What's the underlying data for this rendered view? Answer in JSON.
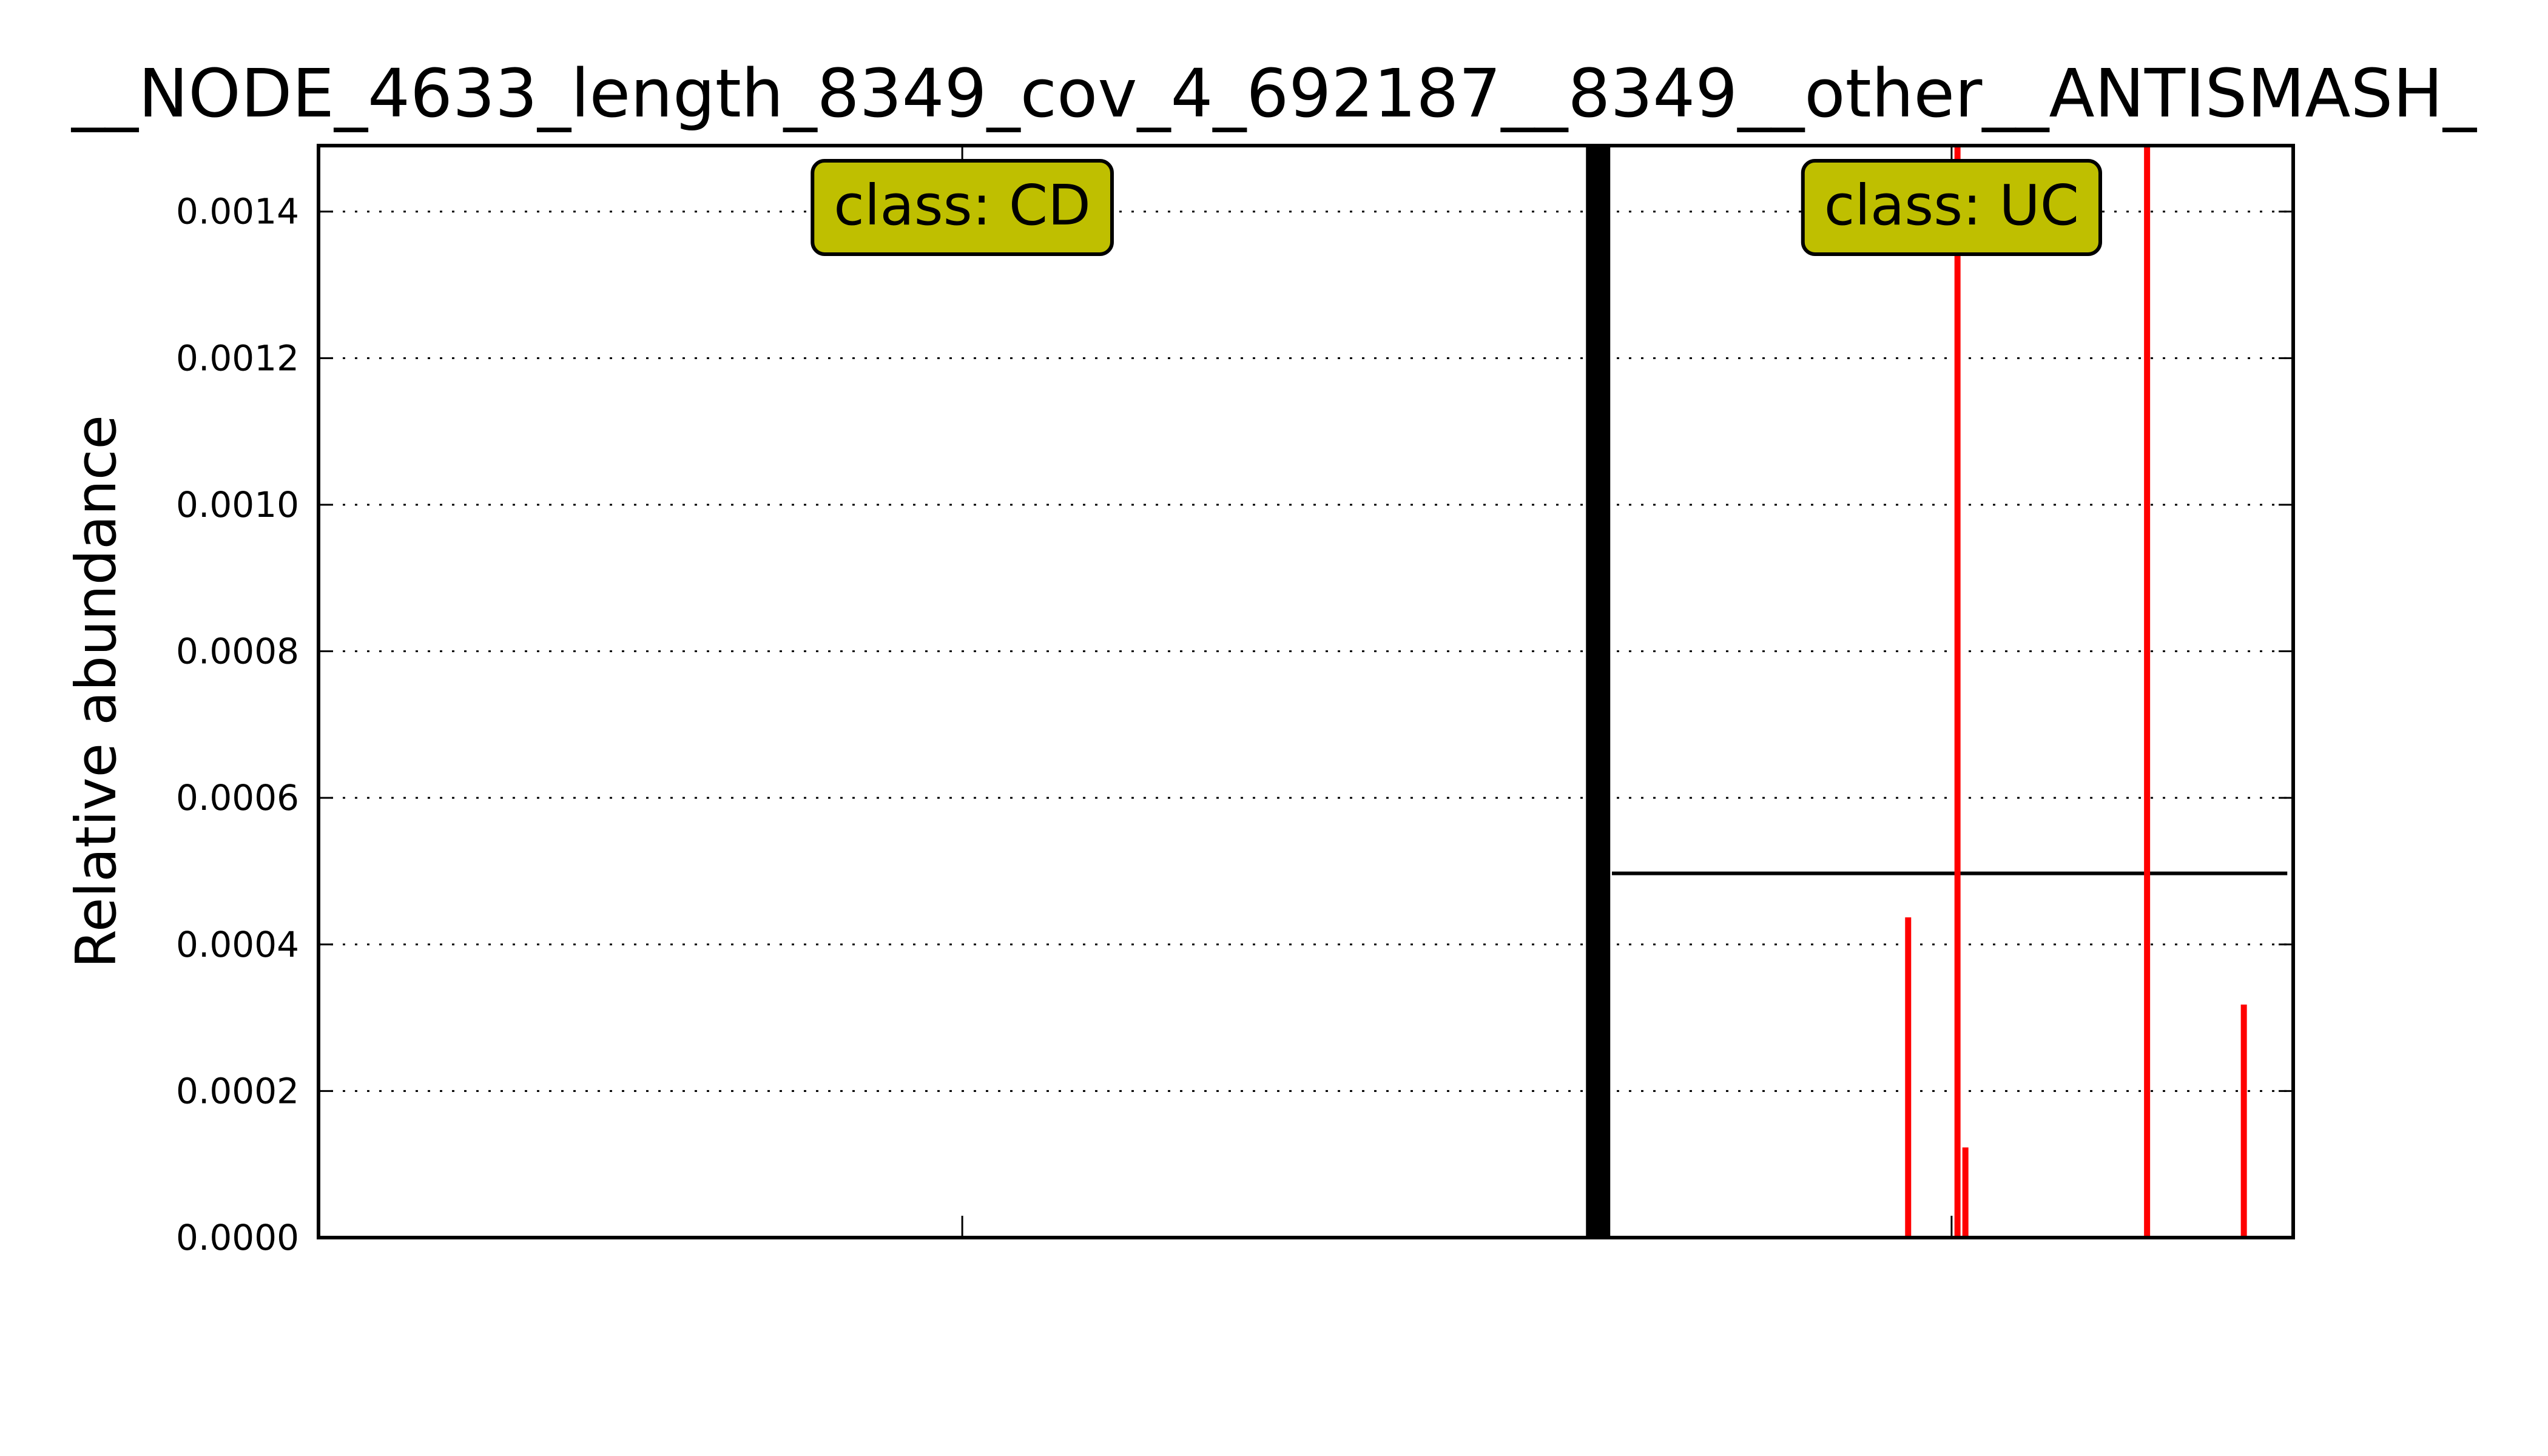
{
  "chart_data": {
    "type": "bar",
    "title": "__NODE_4633_length_8349_cov_4_692187__8349__other__ANTISMASH_",
    "xlabel": "",
    "ylabel": "Relative abundance",
    "ylim": [
      0,
      0.00149
    ],
    "xlim": [
      0,
      1
    ],
    "yticks": [
      0.0,
      0.0002,
      0.0004,
      0.0006,
      0.0008,
      0.001,
      0.0012,
      0.0014
    ],
    "ytick_labels": [
      "0.0000",
      "0.0002",
      "0.0004",
      "0.0006",
      "0.0008",
      "0.0010",
      "0.0012",
      "0.0014"
    ],
    "xticks": [
      0.326,
      0.827
    ],
    "grid": true,
    "separator_x": 0.648,
    "classes": [
      {
        "label": "class: CD",
        "x": 0.326
      },
      {
        "label": "class: UC",
        "x": 0.827
      }
    ],
    "mean_line": {
      "value": 0.000497,
      "x_start": 0.655,
      "x_end": 0.997
    },
    "series": [
      {
        "color": "#ff0000",
        "x": [
          0.805,
          0.83,
          0.834,
          0.926,
          0.975
        ],
        "values": [
          0.000437,
          0.00149,
          0.000123,
          0.00149,
          0.000318
        ]
      }
    ],
    "colors": {
      "bar": "#ff0000",
      "box_fill": "#bfbf00",
      "axis": "#000000",
      "grid": "#000000"
    }
  }
}
